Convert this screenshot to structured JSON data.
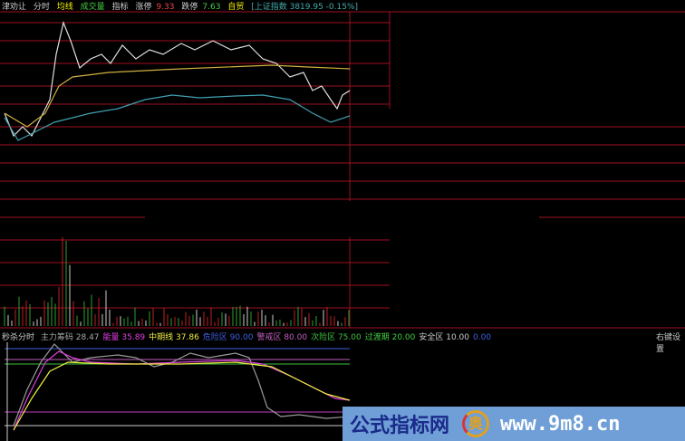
{
  "header": {
    "name": "津劝让",
    "tabs": [
      "分时",
      "均线",
      "成交量",
      "指标"
    ],
    "limit_up_label": "涨停",
    "limit_up": "9.33",
    "limit_down_label": "跌停",
    "limit_down": "7.63",
    "sector": "自贸",
    "index": "[上证指数 3819.95 -0.15%]"
  },
  "indicator": {
    "name": "秒杀分时",
    "items": [
      {
        "label": "主力筹码",
        "value": "28.47",
        "color": "#aaaaaa"
      },
      {
        "label": "能量",
        "value": "35.89",
        "color": "#e040e0"
      },
      {
        "label": "中期线",
        "value": "37.86",
        "color": "#f0f040"
      },
      {
        "label": "危险区",
        "value": "90.00",
        "color": "#4060e0"
      },
      {
        "label": "警戒区",
        "value": "80.00",
        "color": "#c060c0"
      },
      {
        "label": "次险区",
        "value": "75.00",
        "color": "#40c040"
      },
      {
        "label": "过渡期",
        "value": "20.00",
        "color": "#40d040"
      },
      {
        "label": "安全区",
        "value": "10.00",
        "color": "#cccccc"
      },
      {
        "label": "",
        "value": "0.00",
        "color": "#4060e0"
      }
    ]
  },
  "right_settings": "右键设置",
  "watermark": {
    "text": "公式指标网",
    "url": "www.9m8.cn",
    "logo": "奥"
  },
  "colors": {
    "grid": "#a01020",
    "price": "#e0e0e0",
    "avg": "#d0c060",
    "blue": "#40a0b0"
  }
}
